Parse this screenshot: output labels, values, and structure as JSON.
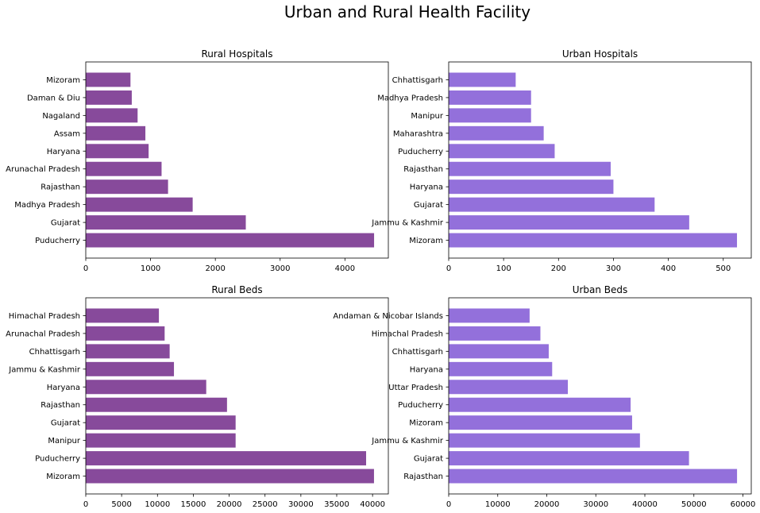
{
  "figure": {
    "title": "Urban and Rural Health Facility",
    "colors": {
      "rural": "#874a9b",
      "urban": "#9370db"
    }
  },
  "chart_data": [
    {
      "type": "bar",
      "orientation": "horizontal",
      "title": "Rural Hospitals",
      "categories": [
        "Puducherry",
        "Gujarat",
        "Madhya Pradesh",
        "Rajasthan",
        "Arunachal Pradesh",
        "Haryana",
        "Assam",
        "Nagaland",
        "Daman & Diu",
        "Mizoram"
      ],
      "values": [
        4450,
        2470,
        1650,
        1270,
        1170,
        970,
        920,
        800,
        710,
        690
      ],
      "xlim": [
        0,
        4670
      ],
      "xticks": [
        0,
        1000,
        2000,
        3000,
        4000
      ],
      "xtick_labels": [
        "0",
        "1000",
        "2000",
        "3000",
        "4000"
      ],
      "color": "#874a9b"
    },
    {
      "type": "bar",
      "orientation": "horizontal",
      "title": "Urban Hospitals",
      "categories": [
        "Mizoram",
        "Jammu & Kashmir",
        "Gujarat",
        "Haryana",
        "Rajasthan",
        "Puducherry",
        "Maharashtra",
        "Manipur",
        "Madhya Pradesh",
        "Chhattisgarh"
      ],
      "values": [
        525,
        438,
        375,
        300,
        295,
        193,
        173,
        150,
        150,
        122
      ],
      "xlim": [
        0,
        551
      ],
      "xticks": [
        0,
        100,
        200,
        300,
        400,
        500
      ],
      "xtick_labels": [
        "0",
        "100",
        "200",
        "300",
        "400",
        "500"
      ],
      "color": "#9370db"
    },
    {
      "type": "bar",
      "orientation": "horizontal",
      "title": "Rural Beds",
      "categories": [
        "Mizoram",
        "Puducherry",
        "Manipur",
        "Gujarat",
        "Rajasthan",
        "Haryana",
        "Jammu & Kashmir",
        "Chhattisgarh",
        "Arunachal Pradesh",
        "Himachal Pradesh"
      ],
      "values": [
        40200,
        39100,
        20900,
        20900,
        19700,
        16800,
        12300,
        11700,
        11000,
        10200
      ],
      "xlim": [
        0,
        42200
      ],
      "xticks": [
        0,
        5000,
        10000,
        15000,
        20000,
        25000,
        30000,
        35000,
        40000
      ],
      "xtick_labels": [
        "0",
        "5000",
        "10000",
        "15000",
        "20000",
        "25000",
        "30000",
        "35000",
        "40000"
      ],
      "color": "#874a9b"
    },
    {
      "type": "bar",
      "orientation": "horizontal",
      "title": "Urban Beds",
      "categories": [
        "Rajasthan",
        "Gujarat",
        "Jammu & Kashmir",
        "Mizoram",
        "Puducherry",
        "Uttar Pradesh",
        "Haryana",
        "Chhattisgarh",
        "Himachal Pradesh",
        "Andaman & Nicobar Islands"
      ],
      "values": [
        58800,
        49000,
        39000,
        37400,
        37100,
        24300,
        21100,
        20400,
        18700,
        16500
      ],
      "xlim": [
        0,
        61700
      ],
      "xticks": [
        0,
        10000,
        20000,
        30000,
        40000,
        50000,
        60000
      ],
      "xtick_labels": [
        "0",
        "10000",
        "20000",
        "30000",
        "40000",
        "50000",
        "60000"
      ],
      "color": "#9370db"
    }
  ]
}
